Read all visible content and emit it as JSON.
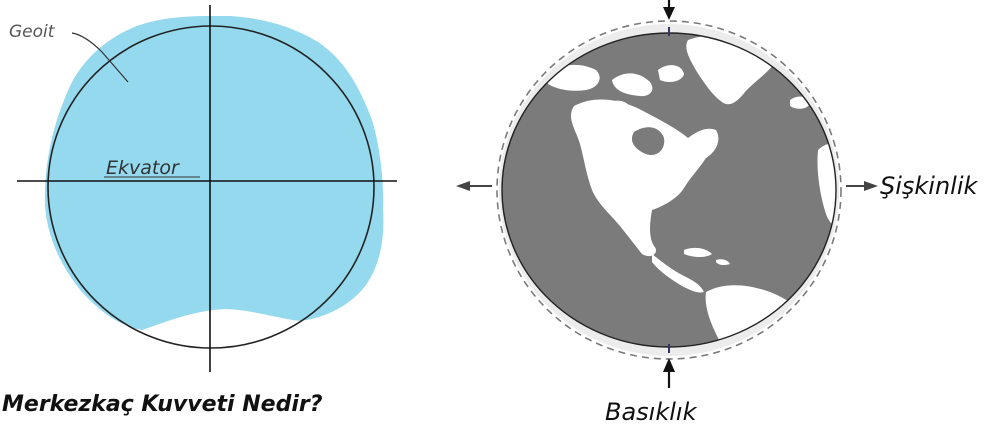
{
  "left_figure": {
    "geoid_label": "Geoit",
    "equator_label": "Ekvator",
    "geoid_color": "#95d9ef"
  },
  "right_figure": {
    "bulge_label": "Şişkinlik",
    "flattening_label": "Basıklık",
    "land_color": "#ffffff",
    "ocean_color": "#7b7b7b"
  },
  "caption": "Merkezkaç Kuvveti Nedir?"
}
